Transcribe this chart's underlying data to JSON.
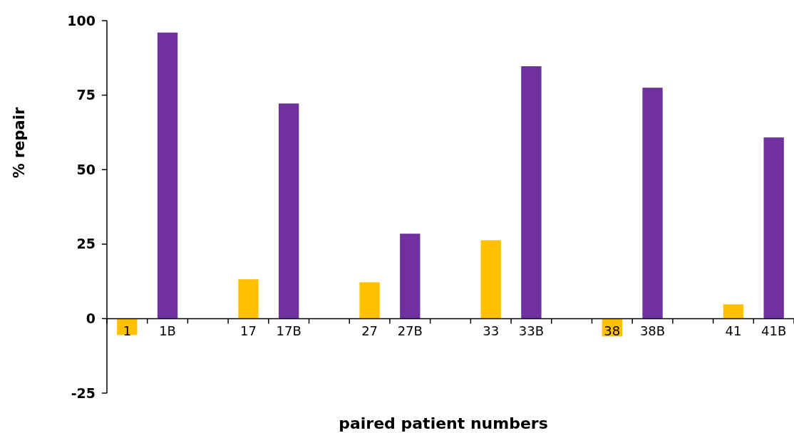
{
  "chart_data": {
    "type": "bar",
    "xlabel": "paired patient numbers",
    "ylabel": "% repair",
    "categories": [
      "1",
      "1B",
      null,
      "17",
      "17B",
      null,
      "27",
      "27B",
      null,
      "33",
      "33B",
      null,
      "38",
      "38B",
      null,
      "41",
      "41B"
    ],
    "values": [
      -5.5,
      96,
      null,
      13.2,
      72.2,
      null,
      12.2,
      28.5,
      null,
      26.3,
      84.7,
      null,
      -6,
      77.5,
      null,
      4.8,
      60.8
    ],
    "colors": [
      "#ffc000",
      "#7030a0",
      null,
      "#ffc000",
      "#7030a0",
      null,
      "#ffc000",
      "#7030a0",
      null,
      "#ffc000",
      "#7030a0",
      null,
      "#ffc000",
      "#7030a0",
      null,
      "#ffc000",
      "#7030a0"
    ],
    "ylim": [
      -25,
      100
    ],
    "yticks": [
      -25,
      0,
      25,
      50,
      75,
      100
    ],
    "grid": false
  }
}
